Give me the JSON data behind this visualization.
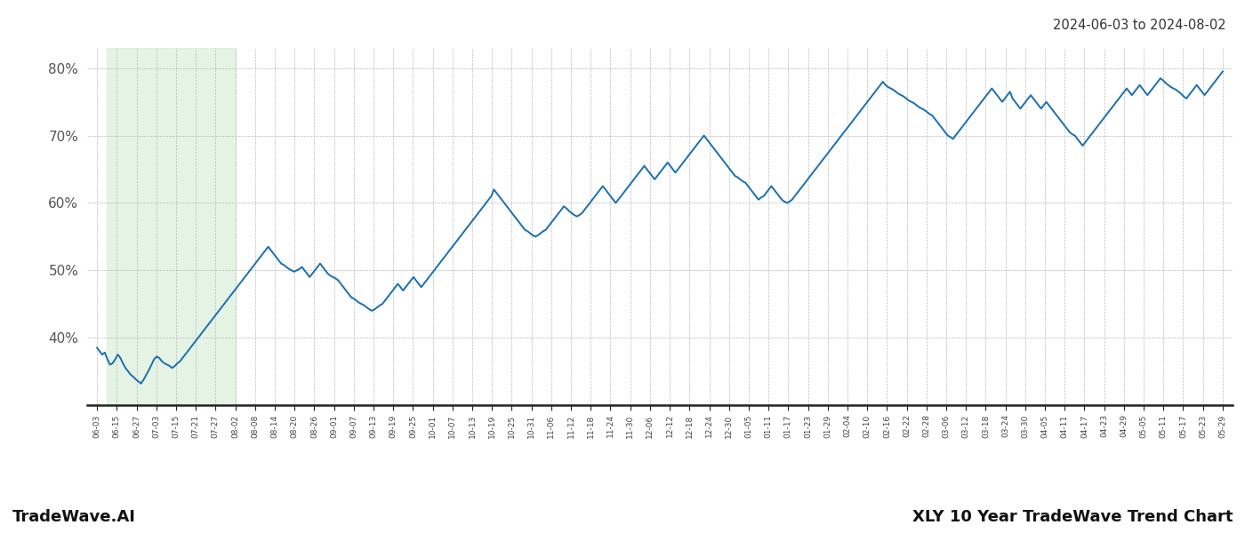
{
  "title_top_right": "2024-06-03 to 2024-08-02",
  "label_bottom_left": "TradeWave.AI",
  "label_bottom_right": "XLY 10 Year TradeWave Trend Chart",
  "line_color": "#1a6faf",
  "line_width": 1.4,
  "shade_color": "#d4ebd4",
  "shade_alpha": 0.6,
  "background_color": "#ffffff",
  "grid_color": "#bbbbbb",
  "ylim": [
    30,
    83
  ],
  "yticks": [
    40,
    50,
    60,
    70,
    80
  ],
  "x_labels": [
    "06-03",
    "06-15",
    "06-27",
    "07-03",
    "07-15",
    "07-21",
    "07-27",
    "08-02",
    "08-08",
    "08-14",
    "08-20",
    "08-26",
    "09-01",
    "09-07",
    "09-13",
    "09-19",
    "09-25",
    "10-01",
    "10-07",
    "10-13",
    "10-19",
    "10-25",
    "10-31",
    "11-06",
    "11-12",
    "11-18",
    "11-24",
    "11-30",
    "12-06",
    "12-12",
    "12-18",
    "12-24",
    "12-30",
    "01-05",
    "01-11",
    "01-17",
    "01-23",
    "01-29",
    "02-04",
    "02-10",
    "02-16",
    "02-22",
    "02-28",
    "03-06",
    "03-12",
    "03-18",
    "03-24",
    "03-30",
    "04-05",
    "04-11",
    "04-17",
    "04-23",
    "04-29",
    "05-05",
    "05-11",
    "05-17",
    "05-23",
    "05-29"
  ],
  "shade_start_label": "06-09",
  "shade_end_label": "08-02",
  "y_values": [
    38.5,
    38.0,
    37.5,
    37.8,
    36.8,
    36.0,
    36.2,
    36.8,
    37.5,
    37.0,
    36.2,
    35.5,
    35.0,
    34.5,
    34.2,
    33.8,
    33.5,
    33.2,
    33.8,
    34.5,
    35.2,
    36.0,
    36.8,
    37.2,
    37.0,
    36.5,
    36.2,
    36.0,
    35.8,
    35.5,
    35.8,
    36.2,
    36.5,
    37.0,
    37.5,
    38.0,
    38.5,
    39.0,
    39.5,
    40.0,
    40.5,
    41.0,
    41.5,
    42.0,
    42.5,
    43.0,
    43.5,
    44.0,
    44.5,
    45.0,
    45.5,
    46.0,
    46.5,
    47.0,
    47.5,
    48.0,
    48.5,
    49.0,
    49.5,
    50.0,
    50.5,
    51.0,
    51.5,
    52.0,
    52.5,
    53.0,
    53.5,
    53.0,
    52.5,
    52.0,
    51.5,
    51.0,
    50.8,
    50.5,
    50.2,
    50.0,
    49.8,
    50.0,
    50.2,
    50.5,
    50.0,
    49.5,
    49.0,
    49.5,
    50.0,
    50.5,
    51.0,
    50.5,
    50.0,
    49.5,
    49.2,
    49.0,
    48.8,
    48.5,
    48.0,
    47.5,
    47.0,
    46.5,
    46.0,
    45.8,
    45.5,
    45.2,
    45.0,
    44.8,
    44.5,
    44.2,
    44.0,
    44.2,
    44.5,
    44.8,
    45.0,
    45.5,
    46.0,
    46.5,
    47.0,
    47.5,
    48.0,
    47.5,
    47.0,
    47.5,
    48.0,
    48.5,
    49.0,
    48.5,
    48.0,
    47.5,
    48.0,
    48.5,
    49.0,
    49.5,
    50.0,
    50.5,
    51.0,
    51.5,
    52.0,
    52.5,
    53.0,
    53.5,
    54.0,
    54.5,
    55.0,
    55.5,
    56.0,
    56.5,
    57.0,
    57.5,
    58.0,
    58.5,
    59.0,
    59.5,
    60.0,
    60.5,
    61.0,
    62.0,
    61.5,
    61.0,
    60.5,
    60.0,
    59.5,
    59.0,
    58.5,
    58.0,
    57.5,
    57.0,
    56.5,
    56.0,
    55.8,
    55.5,
    55.2,
    55.0,
    55.2,
    55.5,
    55.8,
    56.0,
    56.5,
    57.0,
    57.5,
    58.0,
    58.5,
    59.0,
    59.5,
    59.2,
    58.8,
    58.5,
    58.2,
    58.0,
    58.2,
    58.5,
    59.0,
    59.5,
    60.0,
    60.5,
    61.0,
    61.5,
    62.0,
    62.5,
    62.0,
    61.5,
    61.0,
    60.5,
    60.0,
    60.5,
    61.0,
    61.5,
    62.0,
    62.5,
    63.0,
    63.5,
    64.0,
    64.5,
    65.0,
    65.5,
    65.0,
    64.5,
    64.0,
    63.5,
    64.0,
    64.5,
    65.0,
    65.5,
    66.0,
    65.5,
    65.0,
    64.5,
    65.0,
    65.5,
    66.0,
    66.5,
    67.0,
    67.5,
    68.0,
    68.5,
    69.0,
    69.5,
    70.0,
    69.5,
    69.0,
    68.5,
    68.0,
    67.5,
    67.0,
    66.5,
    66.0,
    65.5,
    65.0,
    64.5,
    64.0,
    63.8,
    63.5,
    63.2,
    63.0,
    62.5,
    62.0,
    61.5,
    61.0,
    60.5,
    60.8,
    61.0,
    61.5,
    62.0,
    62.5,
    62.0,
    61.5,
    61.0,
    60.5,
    60.2,
    60.0,
    60.2,
    60.5,
    61.0,
    61.5,
    62.0,
    62.5,
    63.0,
    63.5,
    64.0,
    64.5,
    65.0,
    65.5,
    66.0,
    66.5,
    67.0,
    67.5,
    68.0,
    68.5,
    69.0,
    69.5,
    70.0,
    70.5,
    71.0,
    71.5,
    72.0,
    72.5,
    73.0,
    73.5,
    74.0,
    74.5,
    75.0,
    75.5,
    76.0,
    76.5,
    77.0,
    77.5,
    78.0,
    77.5,
    77.2,
    77.0,
    76.8,
    76.5,
    76.2,
    76.0,
    75.8,
    75.5,
    75.2,
    75.0,
    74.8,
    74.5,
    74.2,
    74.0,
    73.8,
    73.5,
    73.2,
    73.0,
    72.5,
    72.0,
    71.5,
    71.0,
    70.5,
    70.0,
    69.8,
    69.5,
    70.0,
    70.5,
    71.0,
    71.5,
    72.0,
    72.5,
    73.0,
    73.5,
    74.0,
    74.5,
    75.0,
    75.5,
    76.0,
    76.5,
    77.0,
    76.5,
    76.0,
    75.5,
    75.0,
    75.5,
    76.0,
    76.5,
    75.5,
    75.0,
    74.5,
    74.0,
    74.5,
    75.0,
    75.5,
    76.0,
    75.5,
    75.0,
    74.5,
    74.0,
    74.5,
    75.0,
    74.5,
    74.0,
    73.5,
    73.0,
    72.5,
    72.0,
    71.5,
    71.0,
    70.5,
    70.2,
    70.0,
    69.5,
    69.0,
    68.5,
    69.0,
    69.5,
    70.0,
    70.5,
    71.0,
    71.5,
    72.0,
    72.5,
    73.0,
    73.5,
    74.0,
    74.5,
    75.0,
    75.5,
    76.0,
    76.5,
    77.0,
    76.5,
    76.0,
    76.5,
    77.0,
    77.5,
    77.0,
    76.5,
    76.0,
    76.5,
    77.0,
    77.5,
    78.0,
    78.5,
    78.2,
    77.8,
    77.5,
    77.2,
    77.0,
    76.8,
    76.5,
    76.2,
    75.8,
    75.5,
    76.0,
    76.5,
    77.0,
    77.5,
    77.0,
    76.5,
    76.0,
    76.5,
    77.0,
    77.5,
    78.0,
    78.5,
    79.0,
    79.5
  ]
}
